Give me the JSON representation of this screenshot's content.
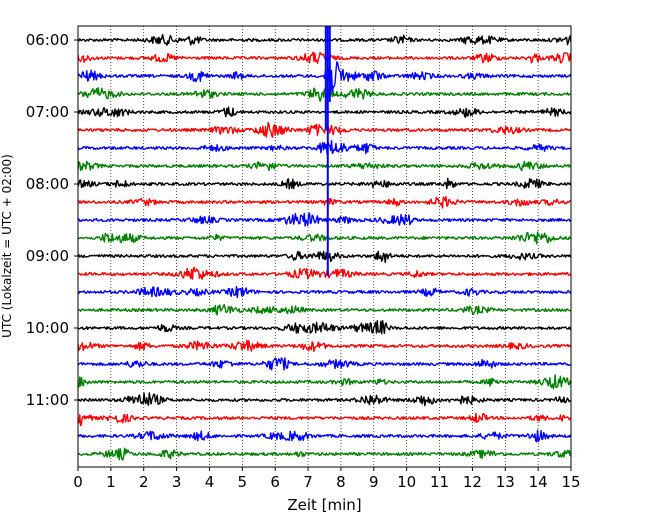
{
  "chart_data": {
    "type": "line",
    "title": "",
    "xlabel": "Zeit  [min]",
    "ylabel": "UTC (Lokalzeit = UTC + 02:00)",
    "xlim": [
      0,
      15
    ],
    "x_ticks": [
      0,
      1,
      2,
      3,
      4,
      5,
      6,
      7,
      8,
      9,
      10,
      11,
      12,
      13,
      14,
      15
    ],
    "x_tick_labels": [
      "0",
      "1",
      "2",
      "3",
      "4",
      "5",
      "6",
      "7",
      "8",
      "9",
      "10",
      "11",
      "12",
      "13",
      "14",
      "15"
    ],
    "grid": "vertical dotted",
    "trace_interval_minutes": 15,
    "y_tick_labels": [
      {
        "label": "06:00",
        "trace": 0
      },
      {
        "label": "07:00",
        "trace": 4
      },
      {
        "label": "08:00",
        "trace": 8
      },
      {
        "label": "09:00",
        "trace": 12
      },
      {
        "label": "10:00",
        "trace": 16
      },
      {
        "label": "11:00",
        "trace": 20
      }
    ],
    "series": [
      {
        "start": "06:00",
        "color": "#000000"
      },
      {
        "start": "06:15",
        "color": "#ff0000"
      },
      {
        "start": "06:30",
        "color": "#0000ff"
      },
      {
        "start": "06:45",
        "color": "#008000"
      },
      {
        "start": "07:00",
        "color": "#000000"
      },
      {
        "start": "07:15",
        "color": "#ff0000"
      },
      {
        "start": "07:30",
        "color": "#0000ff"
      },
      {
        "start": "07:45",
        "color": "#008000"
      },
      {
        "start": "08:00",
        "color": "#000000"
      },
      {
        "start": "08:15",
        "color": "#ff0000"
      },
      {
        "start": "08:30",
        "color": "#0000ff"
      },
      {
        "start": "08:45",
        "color": "#008000"
      },
      {
        "start": "09:00",
        "color": "#000000"
      },
      {
        "start": "09:15",
        "color": "#ff0000"
      },
      {
        "start": "09:30",
        "color": "#0000ff"
      },
      {
        "start": "09:45",
        "color": "#008000"
      },
      {
        "start": "10:00",
        "color": "#000000"
      },
      {
        "start": "10:15",
        "color": "#ff0000"
      },
      {
        "start": "10:30",
        "color": "#0000ff"
      },
      {
        "start": "10:45",
        "color": "#008000"
      },
      {
        "start": "11:00",
        "color": "#000000"
      },
      {
        "start": "11:15",
        "color": "#ff0000"
      },
      {
        "start": "11:30",
        "color": "#0000ff"
      },
      {
        "start": "11:45",
        "color": "#008000"
      }
    ],
    "event": {
      "trace": 2,
      "time_min": 7.6,
      "color": "#0000ff"
    }
  }
}
